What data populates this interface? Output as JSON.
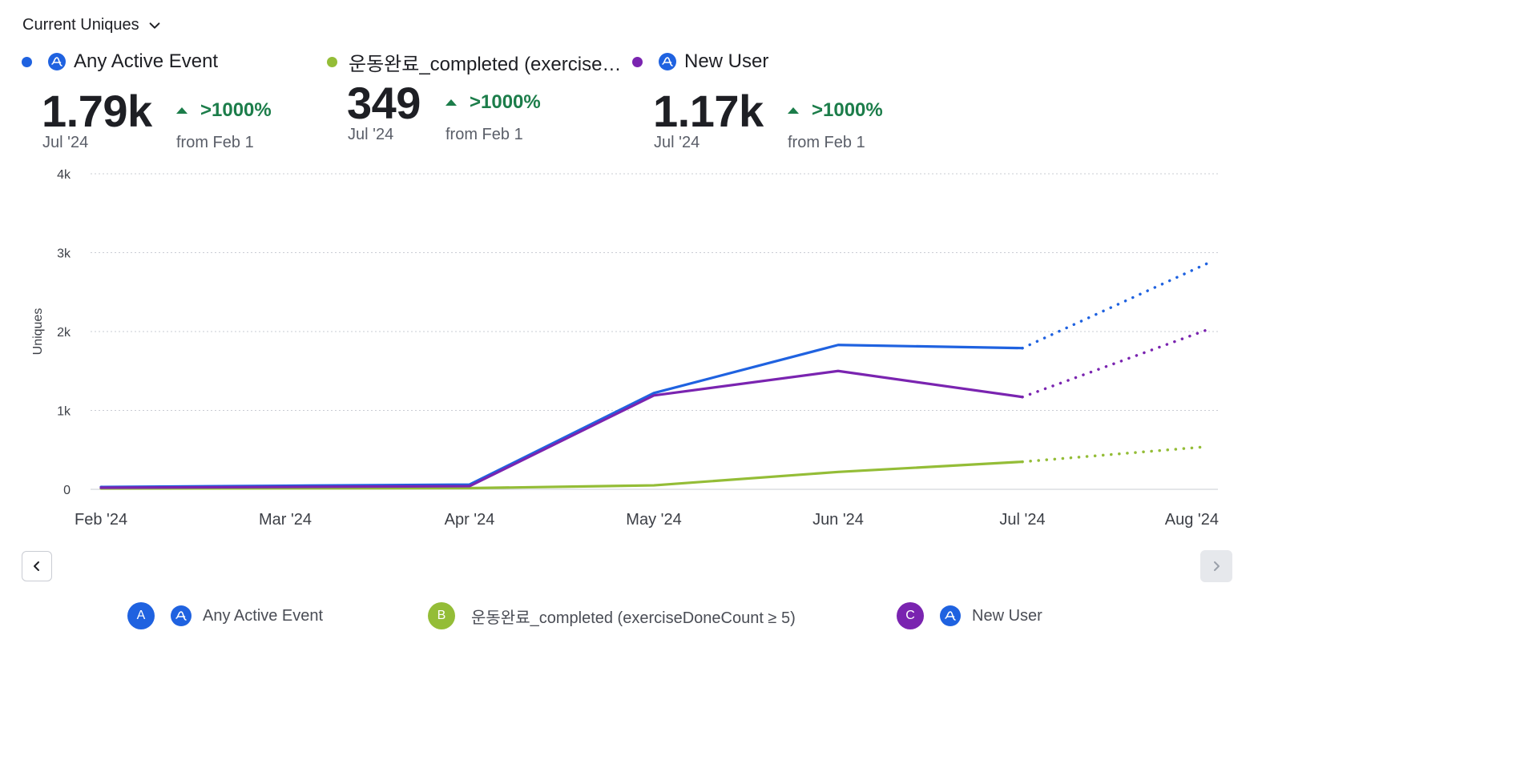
{
  "header": {
    "metric_selector": "Current Uniques"
  },
  "kpis": [
    {
      "name": "Any Active Event",
      "color": "#1f62e0",
      "icon": "amplitude-icon",
      "value": "1.79k",
      "date": "Jul '24",
      "change": ">1000%",
      "from": "from Feb 1"
    },
    {
      "name": "운동완료_completed (exercise…",
      "color": "#94bd37",
      "icon": "",
      "value": "349",
      "date": "Jul '24",
      "change": ">1000%",
      "from": "from Feb 1"
    },
    {
      "name": "New User",
      "color": "#7a24b0",
      "icon": "amplitude-icon",
      "value": "1.17k",
      "date": "Jul '24",
      "change": ">1000%",
      "from": "from Feb 1"
    }
  ],
  "chart_data": {
    "type": "line",
    "ylabel": "Uniques",
    "xlabel": "",
    "ylim": [
      0,
      4000
    ],
    "yticks": [
      0,
      1000,
      2000,
      3000,
      4000
    ],
    "ytick_labels": [
      "0",
      "1k",
      "2k",
      "3k",
      "4k"
    ],
    "categories": [
      "Feb '24",
      "Mar '24",
      "Apr '24",
      "May '24",
      "Jun '24",
      "Jul '24",
      "Aug '24"
    ],
    "grid": true,
    "projection_note": "Aug '24 segment drawn dotted (incomplete period)",
    "series": [
      {
        "name": "Any Active Event",
        "color": "#1f62e0",
        "values": [
          30,
          45,
          60,
          1220,
          1830,
          1790,
          2860
        ]
      },
      {
        "name": "운동완료_completed (exerciseDoneCount ≥ 5)",
        "color": "#94bd37",
        "values": [
          10,
          12,
          15,
          50,
          220,
          349,
          540
        ]
      },
      {
        "name": "New User",
        "color": "#7a24b0",
        "values": [
          20,
          30,
          40,
          1190,
          1500,
          1170,
          2020
        ]
      }
    ]
  },
  "legend": [
    {
      "badge": "A",
      "color": "#1f62e0",
      "icon": "amplitude-icon",
      "label": "Any Active Event"
    },
    {
      "badge": "B",
      "color": "#94bd37",
      "icon": "",
      "label": "운동완료_completed (exerciseDoneCount ≥ 5)"
    },
    {
      "badge": "C",
      "color": "#7a24b0",
      "icon": "amplitude-icon",
      "label": "New User"
    }
  ],
  "nav": {
    "prev_icon": "chevron-left-icon",
    "next_icon": "chevron-right-icon"
  }
}
